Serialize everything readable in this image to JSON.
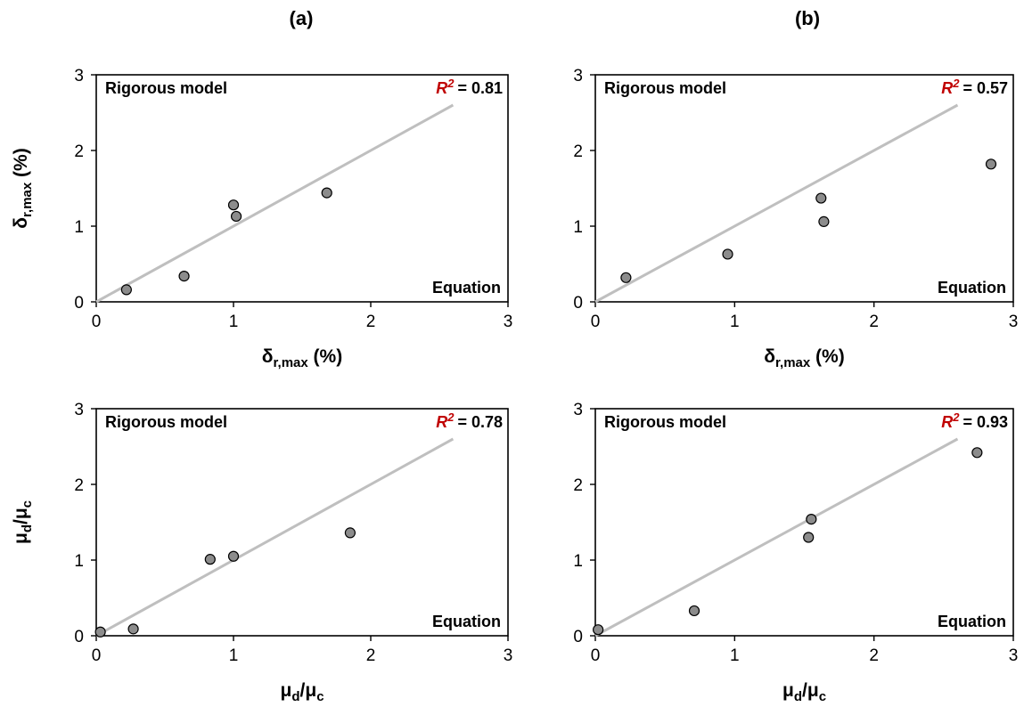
{
  "column_titles": [
    "(a)",
    "(b)"
  ],
  "chart_data": [
    {
      "type": "scatter",
      "panel": "a-top",
      "xlabel": "δr,max (%)",
      "ylabel": "δr,max (%)",
      "xlim": [
        0,
        3
      ],
      "ylim": [
        0,
        3
      ],
      "xticks": [
        0,
        1,
        2,
        3
      ],
      "yticks": [
        0,
        1,
        2,
        3
      ],
      "inset_top_left": "Rigorous model",
      "inset_bottom_right": "Equation",
      "r2_label": "R",
      "r2_sup": "2",
      "r2_value": "= 0.81",
      "points": [
        [
          0.22,
          0.16
        ],
        [
          0.64,
          0.34
        ],
        [
          1.0,
          1.28
        ],
        [
          1.02,
          1.13
        ],
        [
          1.68,
          1.44
        ]
      ],
      "reference_line": [
        [
          0,
          0
        ],
        [
          2.6,
          2.6
        ]
      ],
      "line_color": "#bfbfbf",
      "marker_color": "#8c8c8c",
      "r2_color": "#c00000"
    },
    {
      "type": "scatter",
      "panel": "b-top",
      "xlabel": "δr,max (%)",
      "ylabel": "",
      "xlim": [
        0,
        3
      ],
      "ylim": [
        0,
        3
      ],
      "xticks": [
        0,
        1,
        2,
        3
      ],
      "yticks": [
        0,
        1,
        2,
        3
      ],
      "inset_top_left": "Rigorous model",
      "inset_bottom_right": "Equation",
      "r2_label": "R",
      "r2_sup": "2",
      "r2_value": "= 0.57",
      "points": [
        [
          0.22,
          0.32
        ],
        [
          0.95,
          0.63
        ],
        [
          1.62,
          1.37
        ],
        [
          1.64,
          1.06
        ],
        [
          2.84,
          1.82
        ]
      ],
      "reference_line": [
        [
          0,
          0
        ],
        [
          2.6,
          2.6
        ]
      ],
      "line_color": "#bfbfbf",
      "marker_color": "#8c8c8c",
      "r2_color": "#c00000"
    },
    {
      "type": "scatter",
      "panel": "a-bottom",
      "xlabel": "μd/μc",
      "ylabel": "μd/μc",
      "xlim": [
        0,
        3
      ],
      "ylim": [
        0,
        3
      ],
      "xticks": [
        0,
        1,
        2,
        3
      ],
      "yticks": [
        0,
        1,
        2,
        3
      ],
      "inset_top_left": "Rigorous model",
      "inset_bottom_right": "Equation",
      "r2_label": "R",
      "r2_sup": "2",
      "r2_value": "= 0.78",
      "points": [
        [
          0.03,
          0.05
        ],
        [
          0.27,
          0.09
        ],
        [
          0.83,
          1.01
        ],
        [
          1.0,
          1.05
        ],
        [
          1.85,
          1.36
        ]
      ],
      "reference_line": [
        [
          0,
          0
        ],
        [
          2.6,
          2.6
        ]
      ],
      "line_color": "#bfbfbf",
      "marker_color": "#8c8c8c",
      "r2_color": "#c00000"
    },
    {
      "type": "scatter",
      "panel": "b-bottom",
      "xlabel": "μd/μc",
      "ylabel": "",
      "xlim": [
        0,
        3
      ],
      "ylim": [
        0,
        3
      ],
      "xticks": [
        0,
        1,
        2,
        3
      ],
      "yticks": [
        0,
        1,
        2,
        3
      ],
      "inset_top_left": "Rigorous model",
      "inset_bottom_right": "Equation",
      "r2_label": "R",
      "r2_sup": "2",
      "r2_value": "= 0.93",
      "points": [
        [
          0.02,
          0.08
        ],
        [
          0.71,
          0.33
        ],
        [
          1.53,
          1.3
        ],
        [
          1.55,
          1.54
        ],
        [
          2.74,
          2.42
        ]
      ],
      "reference_line": [
        [
          0,
          0
        ],
        [
          2.6,
          2.6
        ]
      ],
      "line_color": "#bfbfbf",
      "marker_color": "#8c8c8c",
      "r2_color": "#c00000"
    }
  ]
}
